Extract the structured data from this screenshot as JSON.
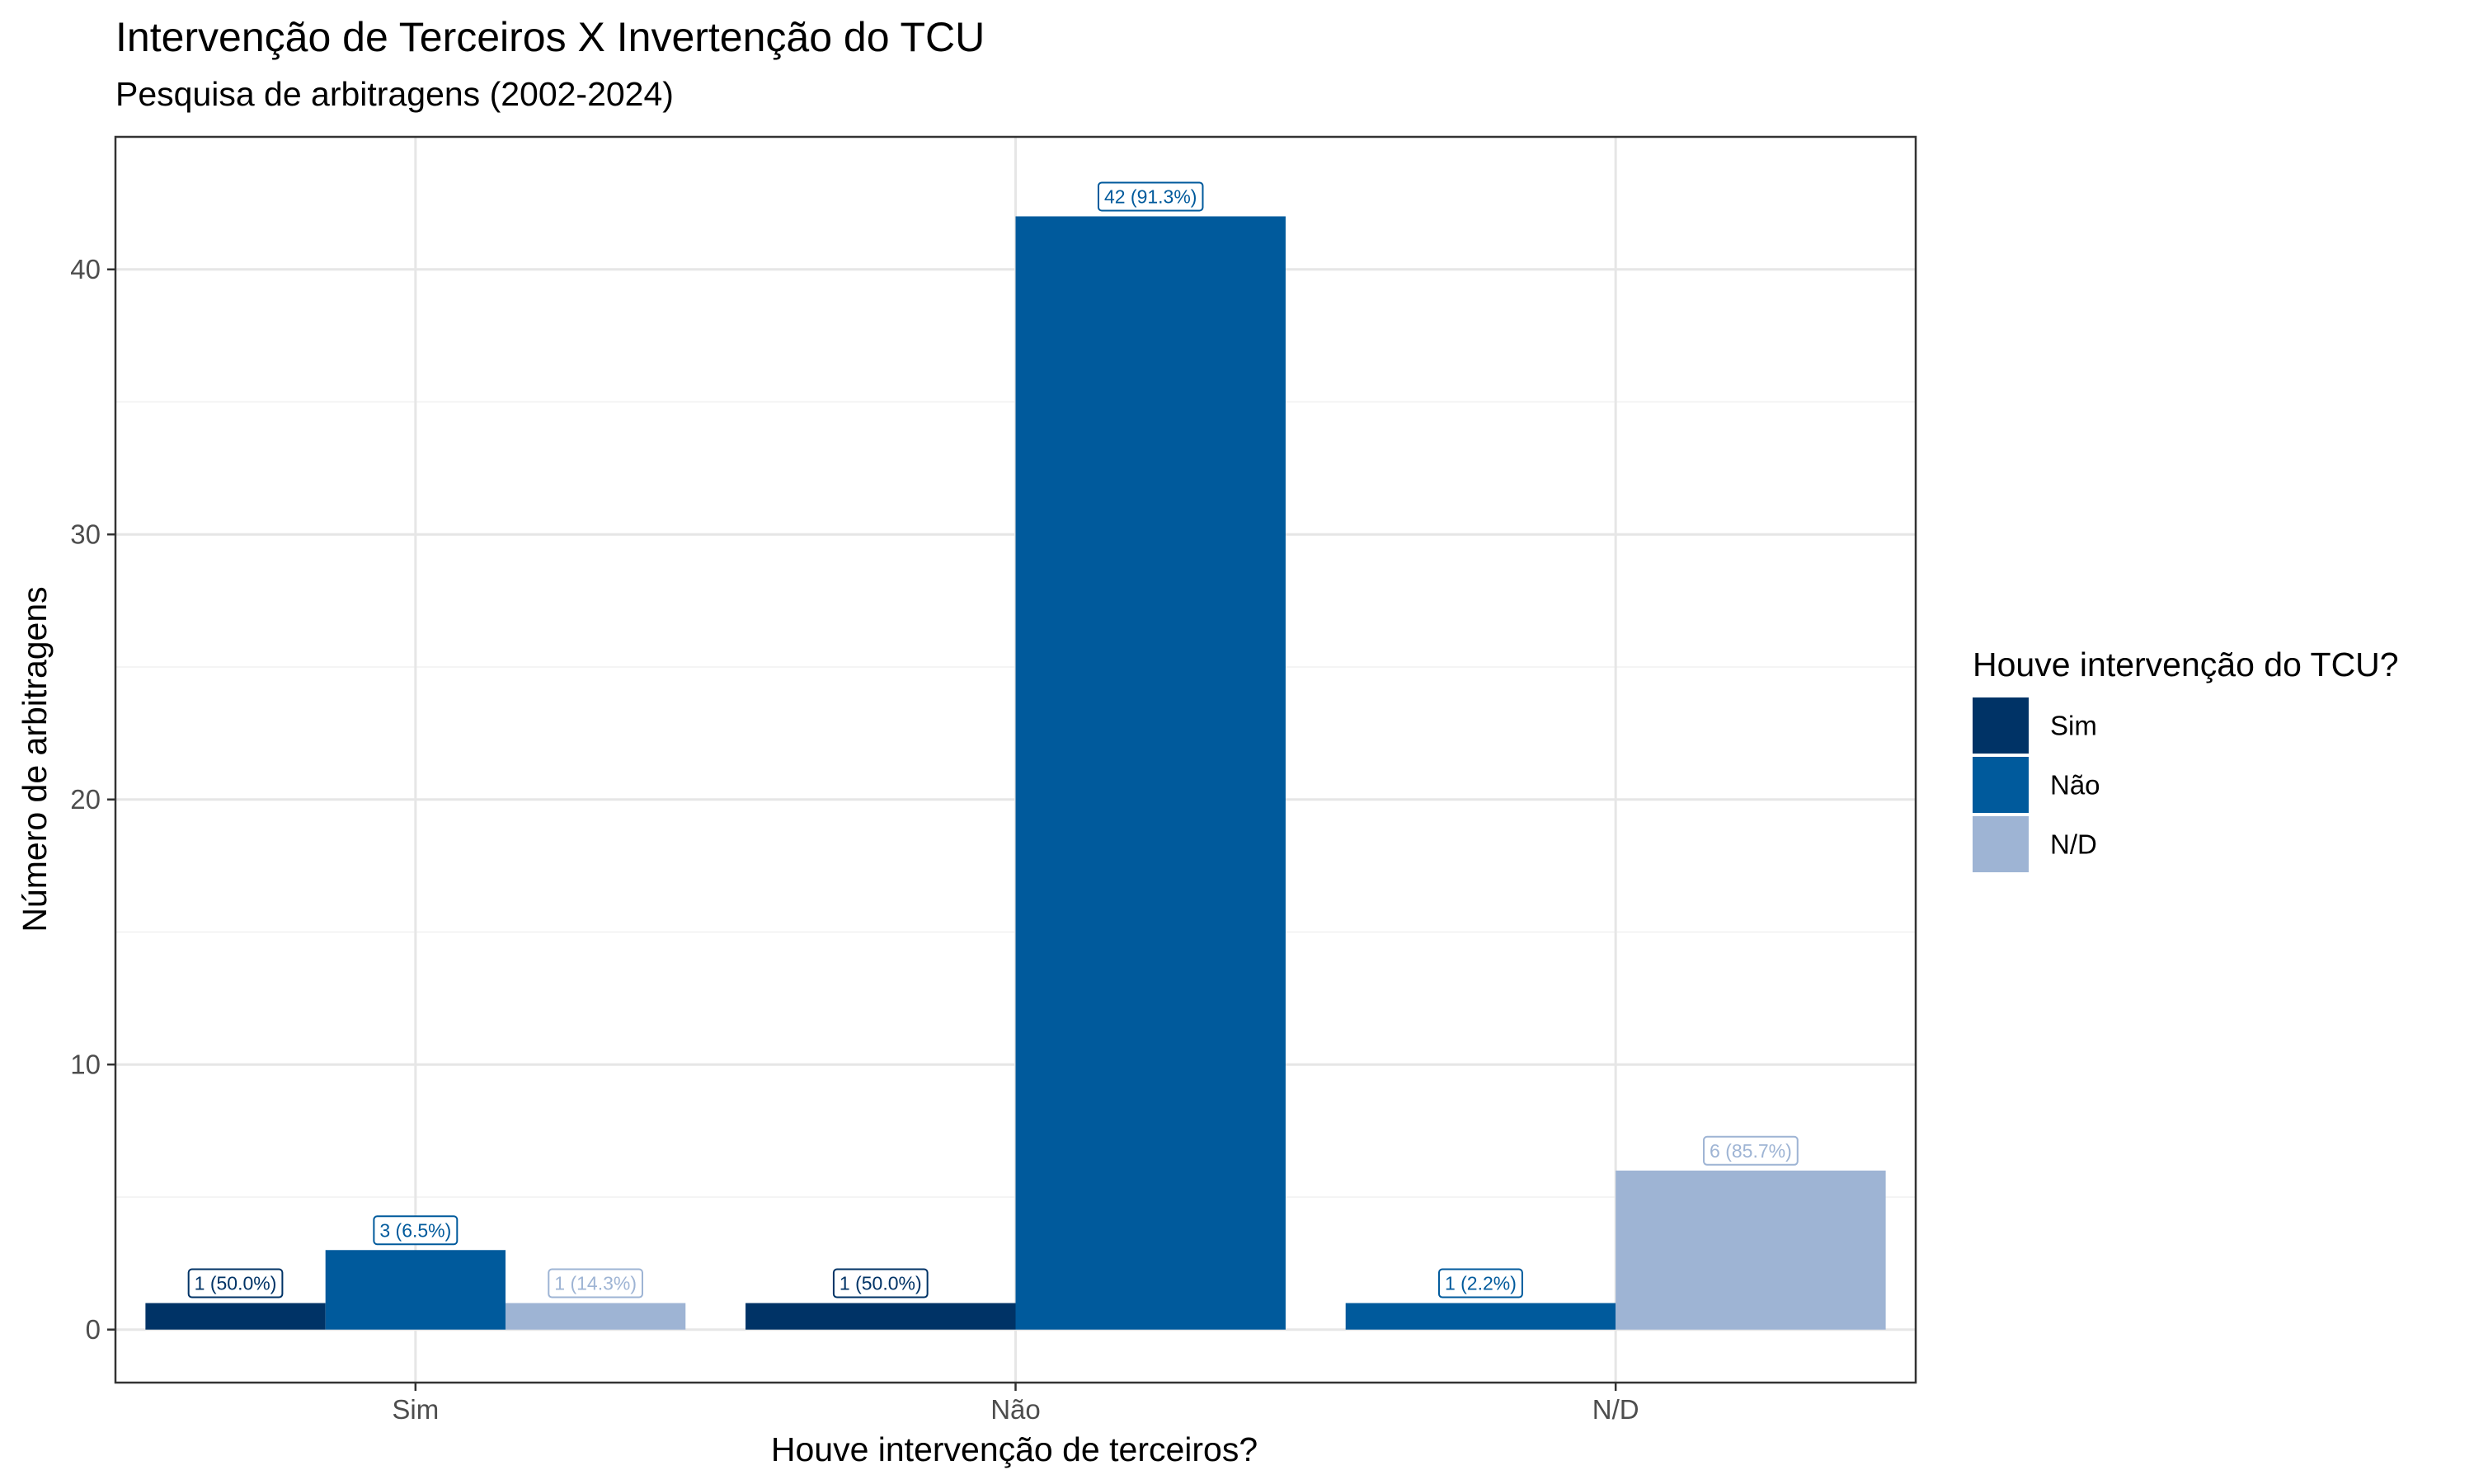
{
  "chart_data": {
    "type": "bar",
    "title": "Intervenção de Terceiros X Invertenção do TCU",
    "subtitle": "Pesquisa de arbitragens (2002-2024)",
    "xlabel": "Houve intervenção de terceiros?",
    "ylabel": "Número de arbitragens",
    "categories": [
      "Sim",
      "Não",
      "N/D"
    ],
    "ylim": [
      -2,
      45
    ],
    "yticks": [
      0,
      10,
      20,
      30,
      40
    ],
    "grid": true,
    "legend": {
      "title": "Houve intervenção do TCU?",
      "position": "right"
    },
    "series": [
      {
        "name": "Sim",
        "color": "#003366",
        "values": [
          1,
          1,
          null
        ],
        "labels": [
          "1 (50.0%)",
          "1 (50.0%)",
          null
        ]
      },
      {
        "name": "Não",
        "color": "#005A9C",
        "values": [
          3,
          42,
          1
        ],
        "labels": [
          "3 (6.5%)",
          "42 (91.3%)",
          "1 (2.2%)"
        ]
      },
      {
        "name": "N/D",
        "color": "#9EB4D4",
        "values": [
          1,
          null,
          6
        ],
        "labels": [
          "1 (14.3%)",
          null,
          "6 (85.7%)"
        ]
      }
    ]
  }
}
